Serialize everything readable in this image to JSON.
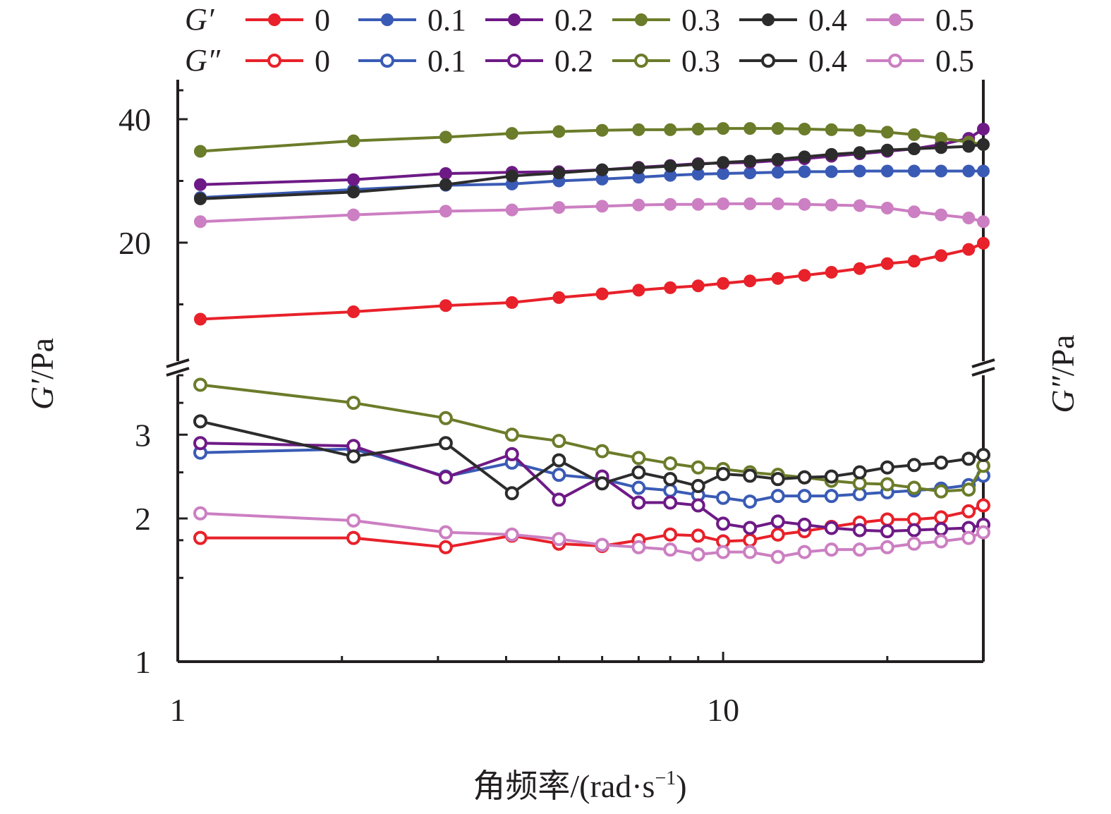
{
  "chart_data": {
    "type": "line",
    "xlabel": "角频率/(rad·s⁻¹)",
    "xlabel_parts": {
      "main": "角频率/(rad·s",
      "sup": "−1",
      "close": ")"
    },
    "ylabel_left": {
      "sym": "G′",
      "unit": "/Pa"
    },
    "ylabel_right": {
      "sym": "G″",
      "unit": "/Pa"
    },
    "x_scale": "log",
    "xlim": [
      1,
      30
    ],
    "x_ticks": [
      1,
      10
    ],
    "x_tick_labels": [
      "1",
      "10"
    ],
    "upper_panel": {
      "measure": "G′",
      "ylim": [
        3,
        46
      ],
      "y_ticks": [
        20,
        40
      ],
      "y_tick_labels": [
        "20",
        "40"
      ]
    },
    "lower_panel": {
      "measure": "G″",
      "y_scale": "log",
      "ylim": [
        1,
        4.2
      ],
      "y_ticks": [
        1,
        2,
        3
      ],
      "y_tick_labels": [
        "1",
        "2",
        "3"
      ]
    },
    "x": [
      1.1,
      2.1,
      3.1,
      4.1,
      5.0,
      6.0,
      7.0,
      8.0,
      9.0,
      10.0,
      11.2,
      12.6,
      14.1,
      15.8,
      17.8,
      20.0,
      22.4,
      25.1,
      28.2,
      30.0
    ],
    "legend": {
      "row1_label": "G′",
      "row2_label": "G″",
      "labels": [
        "0",
        "0.1",
        "0.2",
        "0.3",
        "0.4",
        "0.5"
      ]
    },
    "series": [
      {
        "name": "0",
        "measure": "G′",
        "color": "#e8212a",
        "marker": "filled",
        "values": [
          7.6,
          8.8,
          9.8,
          10.3,
          11.1,
          11.7,
          12.3,
          12.7,
          13.0,
          13.4,
          13.8,
          14.2,
          14.7,
          15.2,
          15.8,
          16.6,
          17.0,
          17.9,
          18.9,
          19.9
        ]
      },
      {
        "name": "0.1",
        "measure": "G′",
        "color": "#3a5bb5",
        "marker": "filled",
        "values": [
          27.3,
          28.6,
          29.3,
          29.5,
          30.0,
          30.3,
          30.6,
          30.9,
          31.1,
          31.2,
          31.3,
          31.4,
          31.5,
          31.5,
          31.6,
          31.6,
          31.6,
          31.6,
          31.6,
          31.6
        ]
      },
      {
        "name": "0.2",
        "measure": "G′",
        "color": "#6e1a86",
        "marker": "filled",
        "values": [
          29.4,
          30.2,
          31.2,
          31.4,
          31.5,
          31.8,
          32.2,
          32.5,
          32.8,
          32.9,
          33.0,
          33.3,
          33.6,
          34.0,
          34.4,
          34.8,
          35.2,
          35.9,
          36.9,
          38.4
        ]
      },
      {
        "name": "0.3",
        "measure": "G′",
        "color": "#6b7c2a",
        "marker": "filled",
        "values": [
          34.8,
          36.5,
          37.1,
          37.7,
          38.0,
          38.2,
          38.3,
          38.3,
          38.4,
          38.5,
          38.5,
          38.5,
          38.4,
          38.3,
          38.2,
          37.9,
          37.5,
          36.9,
          36.3,
          35.9
        ]
      },
      {
        "name": "0.4",
        "measure": "G′",
        "color": "#2c2c2c",
        "marker": "filled",
        "values": [
          27.1,
          28.2,
          29.4,
          30.8,
          31.3,
          31.8,
          32.1,
          32.4,
          32.7,
          33.0,
          33.2,
          33.5,
          33.9,
          34.3,
          34.6,
          35.0,
          35.2,
          35.4,
          35.6,
          35.9
        ]
      },
      {
        "name": "0.5",
        "measure": "G′",
        "color": "#cc7fc2",
        "marker": "filled",
        "values": [
          23.4,
          24.5,
          25.1,
          25.3,
          25.7,
          25.9,
          26.1,
          26.2,
          26.2,
          26.3,
          26.3,
          26.3,
          26.2,
          26.1,
          26.0,
          25.6,
          25.0,
          24.5,
          24.0,
          23.4
        ]
      },
      {
        "name": "0",
        "measure": "G″",
        "color": "#e8212a",
        "marker": "open",
        "values": [
          1.82,
          1.82,
          1.74,
          1.84,
          1.77,
          1.75,
          1.8,
          1.85,
          1.84,
          1.79,
          1.8,
          1.85,
          1.88,
          1.92,
          1.96,
          1.99,
          1.99,
          2.01,
          2.07,
          2.13
        ]
      },
      {
        "name": "0.1",
        "measure": "G″",
        "color": "#3a5bb5",
        "marker": "open",
        "values": [
          2.75,
          2.8,
          2.45,
          2.62,
          2.47,
          2.42,
          2.32,
          2.29,
          2.24,
          2.21,
          2.17,
          2.23,
          2.23,
          2.23,
          2.25,
          2.27,
          2.29,
          2.31,
          2.35,
          2.46
        ]
      },
      {
        "name": "0.2",
        "measure": "G″",
        "color": "#6e1a86",
        "marker": "open",
        "values": [
          2.88,
          2.84,
          2.44,
          2.73,
          2.19,
          2.45,
          2.16,
          2.16,
          2.13,
          1.95,
          1.91,
          1.97,
          1.94,
          1.91,
          1.89,
          1.88,
          1.89,
          1.9,
          1.91,
          1.94
        ]
      },
      {
        "name": "0.3",
        "measure": "G″",
        "color": "#6b7c2a",
        "marker": "open",
        "values": [
          3.82,
          3.5,
          3.25,
          3.0,
          2.91,
          2.77,
          2.68,
          2.61,
          2.56,
          2.54,
          2.5,
          2.47,
          2.44,
          2.4,
          2.37,
          2.36,
          2.32,
          2.28,
          2.3,
          2.58
        ]
      },
      {
        "name": "0.4",
        "measure": "G″",
        "color": "#2c2c2c",
        "marker": "open",
        "values": [
          3.2,
          2.7,
          2.88,
          2.26,
          2.65,
          2.37,
          2.5,
          2.42,
          2.34,
          2.48,
          2.46,
          2.42,
          2.44,
          2.45,
          2.5,
          2.56,
          2.59,
          2.62,
          2.67,
          2.72
        ]
      },
      {
        "name": "0.5",
        "measure": "G″",
        "color": "#cc7fc2",
        "marker": "open",
        "values": [
          2.05,
          1.98,
          1.87,
          1.85,
          1.81,
          1.76,
          1.74,
          1.72,
          1.68,
          1.7,
          1.7,
          1.66,
          1.7,
          1.72,
          1.72,
          1.74,
          1.77,
          1.79,
          1.82,
          1.87
        ]
      }
    ]
  }
}
